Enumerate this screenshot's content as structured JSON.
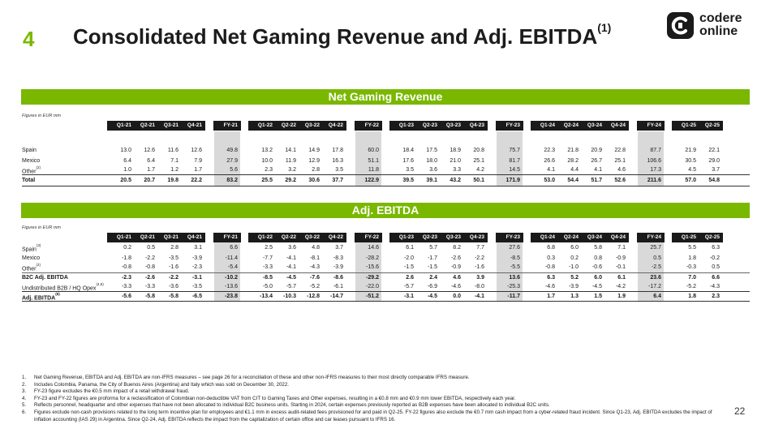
{
  "slide": {
    "number": "4",
    "title": "Consolidated Net Gaming Revenue and Adj. EBITDA",
    "title_sup": "(1)",
    "page": "22"
  },
  "logo": {
    "line1": "codere",
    "line2": "online"
  },
  "columns": [
    "Q1-21",
    "Q2-21",
    "Q3-21",
    "Q4-21",
    "FY-21",
    "Q1-22",
    "Q2-22",
    "Q3-22",
    "Q4-22",
    "FY-22",
    "Q1-23",
    "Q2-23",
    "Q3-23",
    "Q4-23",
    "FY-23",
    "Q1-24",
    "Q2-24",
    "Q3-24",
    "Q4-24",
    "FY-24",
    "Q1-25",
    "Q2-25"
  ],
  "ngr": {
    "banner": "Net Gaming Revenue",
    "figures_label": "Figures in EUR mm",
    "rows": [
      {
        "label": "Spain",
        "sup": "",
        "values": [
          "13.0",
          "12.6",
          "11.6",
          "12.6",
          "49.8",
          "13.2",
          "14.1",
          "14.9",
          "17.8",
          "60.0",
          "18.4",
          "17.5",
          "18.9",
          "20.8",
          "75.7",
          "22.3",
          "21.8",
          "20.9",
          "22.8",
          "87.7",
          "21.9",
          "22.1"
        ]
      },
      {
        "label": "Mexico",
        "sup": "",
        "values": [
          "6.4",
          "6.4",
          "7.1",
          "7.9",
          "27.9",
          "10.0",
          "11.9",
          "12.9",
          "16.3",
          "51.1",
          "17.6",
          "18.0",
          "21.0",
          "25.1",
          "81.7",
          "26.6",
          "28.2",
          "26.7",
          "25.1",
          "106.6",
          "30.5",
          "29.0"
        ]
      },
      {
        "label": "Other",
        "sup": "(2)",
        "values": [
          "1.0",
          "1.7",
          "1.2",
          "1.7",
          "5.6",
          "2.3",
          "3.2",
          "2.8",
          "3.5",
          "11.8",
          "3.5",
          "3.6",
          "3.3",
          "4.2",
          "14.5",
          "4.1",
          "4.4",
          "4.1",
          "4.6",
          "17.3",
          "4.5",
          "3.7"
        ]
      },
      {
        "label": "Total",
        "sup": "",
        "values": [
          "20.5",
          "20.7",
          "19.8",
          "22.2",
          "83.2",
          "25.5",
          "29.2",
          "30.6",
          "37.7",
          "122.9",
          "39.5",
          "39.1",
          "43.2",
          "50.1",
          "171.9",
          "53.0",
          "54.4",
          "51.7",
          "52.6",
          "211.6",
          "57.0",
          "54.8"
        ]
      }
    ]
  },
  "ebitda": {
    "banner": "Adj. EBITDA",
    "figures_label": "Figures in EUR mm",
    "rows": [
      {
        "label": "Spain",
        "sup": "(3)",
        "values": [
          "0.2",
          "0.5",
          "2.8",
          "3.1",
          "6.6",
          "2.5",
          "3.6",
          "4.8",
          "3.7",
          "14.6",
          "6.1",
          "5.7",
          "8.2",
          "7.7",
          "27.6",
          "6.8",
          "6.0",
          "5.8",
          "7.1",
          "25.7",
          "5.5",
          "6.3"
        ]
      },
      {
        "label": "Mexico",
        "sup": "",
        "values": [
          "-1.8",
          "-2.2",
          "-3.5",
          "-3.9",
          "-11.4",
          "-7.7",
          "-4.1",
          "-8.1",
          "-8.3",
          "-28.2",
          "-2.0",
          "-1.7",
          "-2.6",
          "-2.2",
          "-8.5",
          "0.3",
          "0.2",
          "0.8",
          "-0.9",
          "0.5",
          "1.8",
          "-0.2"
        ]
      },
      {
        "label": "Other",
        "sup": "(2)",
        "values": [
          "-0.8",
          "-0.8",
          "-1.6",
          "-2.3",
          "-5.4",
          "-3.3",
          "-4.1",
          "-4.3",
          "-3.9",
          "-15.6",
          "-1.5",
          "-1.5",
          "-0.9",
          "-1.6",
          "-5.5",
          "-0.8",
          "-1.0",
          "-0.6",
          "-0.1",
          "-2.5",
          "-0.3",
          "0.5"
        ]
      },
      {
        "label": "B2C Adj. EBITDA",
        "sup": "",
        "values": [
          "-2.3",
          "-2.6",
          "-2.2",
          "-3.1",
          "-10.2",
          "-8.5",
          "-4.5",
          "-7.6",
          "-8.6",
          "-29.2",
          "2.6",
          "2.4",
          "4.6",
          "3.9",
          "13.6",
          "6.3",
          "5.2",
          "6.0",
          "6.1",
          "23.6",
          "7.0",
          "6.6"
        ]
      },
      {
        "label": "Undistributed B2B / HQ Opex",
        "sup": "(4,5)",
        "values": [
          "-3.3",
          "-3.3",
          "-3.6",
          "-3.5",
          "-13.6",
          "-5.0",
          "-5.7",
          "-5.2",
          "-6.1",
          "-22.0",
          "-5.7",
          "-6.9",
          "-4.6",
          "-8.0",
          "-25.3",
          "-4.6",
          "-3.9",
          "-4.5",
          "-4.2",
          "-17.2",
          "-5.2",
          "-4.3"
        ]
      },
      {
        "label": "Adj. EBITDA",
        "sup": "(6)",
        "values": [
          "-5.6",
          "-5.8",
          "-5.8",
          "-6.5",
          "-23.8",
          "-13.4",
          "-10.3",
          "-12.8",
          "-14.7",
          "-51.2",
          "-3.1",
          "-4.5",
          "0.0",
          "-4.1",
          "-11.7",
          "1.7",
          "1.3",
          "1.5",
          "1.9",
          "6.4",
          "1.8",
          "2.3"
        ]
      }
    ]
  },
  "footnotes": [
    {
      "num": "1.",
      "text": "Net Gaming Revenue, EBITDA and Adj. EBITDA are non-IFRS measures – see page 26 for a reconciliation of these and other non-IFRS measures to their most directly comparable IFRS measure."
    },
    {
      "num": "2.",
      "text": "Includes Colombia, Panama, the City of Buenos Aires (Argentina) and Italy which was sold on December 30, 2022."
    },
    {
      "num": "3.",
      "text": "FY-23 figure excludes the €0.5 mm impact of a retail withdrawal fraud."
    },
    {
      "num": "4.",
      "text": "FY-23 and FY-22 figures are proforma for a reclassification of Colombian non-deductible VAT from CIT to Gaming Taxes and Other expenses, resulting in a €0.8 mm and €0.9 mm lower EBITDA, respectively each year."
    },
    {
      "num": "5.",
      "text": "Reflects personnel, headquarter and other expenses that have not been allocated to individual B2C business units. Starting in 2024, certain expenses previously reported as B2B expenses have been allocated to individual B2C units."
    },
    {
      "num": "6.",
      "text": "Figures exclude non-cash provisions related to the long term incentive plan for employees and €1.1 mm in excess audit-related fees provisioned for and paid in Q2-25. FY-22 figures also exclude the €0.7 mm cash impact from a cyber-related fraud incident. Since Q1-23, Adj. EBITDA excludes the impact of inflation accounting (IAS 29) in Argentina. Since Q2-24, Adj. EBITDA reflects the impact from the capitalization of certain office and car leases pursuant to IFRS 16."
    }
  ]
}
